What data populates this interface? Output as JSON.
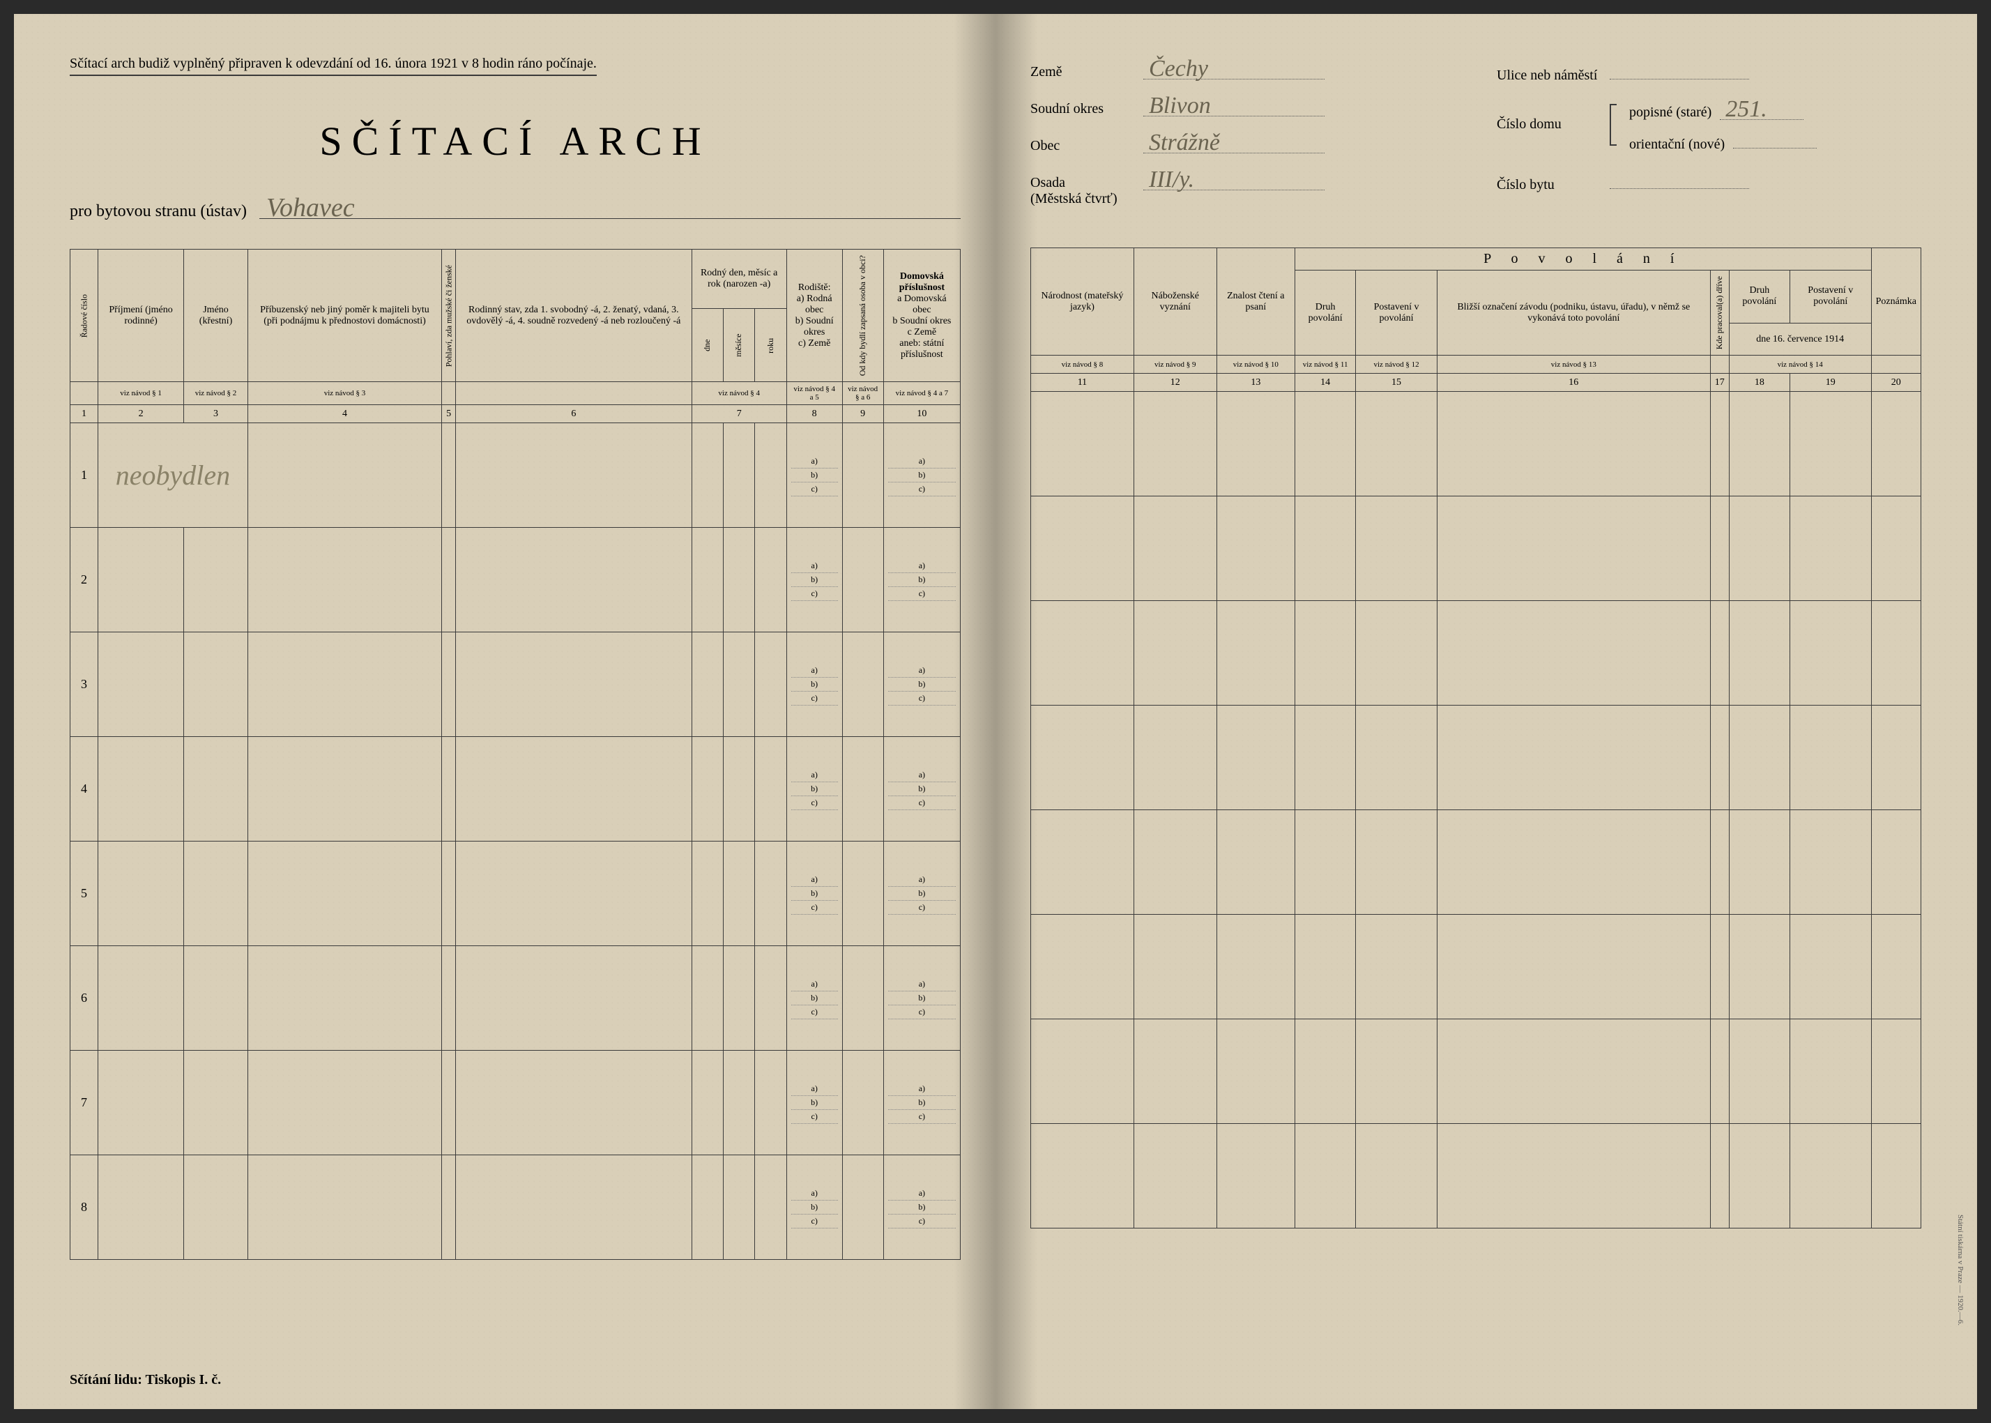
{
  "paper_bg": "#d9cfb8",
  "ink": "#3a3a3a",
  "handwriting_color": "#6a6350",
  "top_instruction": "Sčítací arch budiž vyplněný připraven k odevzdání od 16. února 1921 v 8 hodin ráno počínaje.",
  "main_title": "SČÍTACÍ ARCH",
  "sub_prefix": "pro bytovou stranu (ústav)",
  "sub_value_hand": "Vohavec",
  "footer_left": "Sčítání lidu: Tiskopis I. č.",
  "left_headers": {
    "col1": "Řadové číslo",
    "col2": "Příjmení\n(jméno rodinné)",
    "col3": "Jméno\n(křestní)",
    "col4": "Příbuzenský neb jiný poměr k majiteli bytu (při podnájmu k přednostovi domácnosti)",
    "col5": "Pohlaví, zda mužské či ženské",
    "col6": "Rodinný stav, zda 1. svobodný -á, 2. ženatý, vdaná, 3. ovdovělý -á, 4. soudně rozvedený -á neb rozloučený -á",
    "col7": "Rodný den, měsíc a rok (narozen -a)",
    "col7a": "dne",
    "col7b": "měsíce",
    "col7c": "roku",
    "col8": "Rodiště:",
    "col8a": "a) Rodná obec",
    "col8b": "b) Soudní okres",
    "col8c": "c) Země",
    "col9": "Od kdy bydlí zapsaná osoba v obci?",
    "col10": "Domovská příslušnost",
    "col10a": "a Domovská obec",
    "col10b": "b Soudní okres",
    "col10c": "c Země",
    "col10d": "aneb: státní příslušnost"
  },
  "navod_left": {
    "n1": "viz návod § 1",
    "n2": "viz návod § 2",
    "n3": "viz návod § 3",
    "n4": "viz návod § 4",
    "n5": "viz návod § 4 a 5",
    "n6": "viz návod § a 6",
    "n7": "viz návod § 4 a 7"
  },
  "left_col_nums": [
    "1",
    "2",
    "3",
    "4",
    "5",
    "6",
    "7",
    "8",
    "9",
    "10"
  ],
  "row_nums": [
    "1",
    "2",
    "3",
    "4",
    "5",
    "6",
    "7",
    "8"
  ],
  "row1_handwriting": "neobydlen",
  "abc": {
    "a": "a)",
    "b": "b)",
    "c": "c)"
  },
  "right_fields": {
    "zeme_label": "Země",
    "zeme_value": "Čechy",
    "soudni_label": "Soudní okres",
    "soudni_value": "Blivon",
    "obec_label": "Obec",
    "obec_value": "Strážně",
    "osada_label": "Osada\n(Městská čtvrť)",
    "osada_value": "III/y.",
    "ulice_label": "Ulice neb náměstí",
    "ulice_value": "",
    "cislo_domu_label": "Číslo domu",
    "popisne_label": "popisné (staré)",
    "popisne_value": "251.",
    "orient_label": "orientační (nové)",
    "orient_value": "",
    "cislo_bytu_label": "Číslo bytu",
    "cislo_bytu_value": ""
  },
  "right_headers": {
    "col11": "Národnost (mateřský jazyk)",
    "col12": "Náboženské vyznání",
    "col13": "Znalost čtení a psaní",
    "povolani": "P o v o l á n í",
    "col14": "Druh povolání",
    "col15": "Postavení v povolání",
    "col16": "Bližší označení závodu (podniku, ústavu, úřadu), v němž se vykonává toto povolání",
    "col17_rot": "Kde pracoval(a) dříve",
    "col18": "Druh povolání",
    "col19": "Postavení v povolání",
    "col20": "Poznámka",
    "date_line": "dne 16. července 1914"
  },
  "navod_right": {
    "n8": "viz návod § 8",
    "n9": "viz návod § 9",
    "n10": "viz návod § 10",
    "n11": "viz návod § 11",
    "n12": "viz návod § 12",
    "n13": "viz návod § 13",
    "n14": "viz návod § 14"
  },
  "right_col_nums": [
    "11",
    "12",
    "13",
    "14",
    "15",
    "16",
    "17",
    "18",
    "19",
    "20"
  ],
  "side_print": "Státní tiskárna v Praze — 1920.—6."
}
